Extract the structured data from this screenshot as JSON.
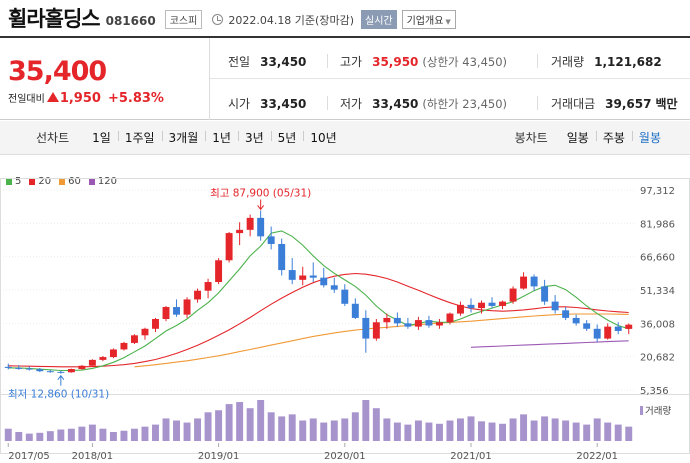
{
  "header": {
    "company": "휠라홀딩스",
    "code": "081660",
    "market": "코스피",
    "date_text": "2022.04.18 기준(장마감)",
    "realtime_label": "실시간",
    "overview_label": "기업개요"
  },
  "price": {
    "current": "35,400",
    "change_label": "전일대비",
    "change": "1,950",
    "change_pct": "+5.83%"
  },
  "stats": {
    "prev_label": "전일",
    "prev": "33,450",
    "high_label": "고가",
    "high": "35,950",
    "high_limit": "(상한가 43,450)",
    "volume_label": "거래량",
    "volume": "1,121,682",
    "open_label": "시가",
    "open": "33,450",
    "low_label": "저가",
    "low": "33,450",
    "low_limit": "(하한가 23,450)",
    "amount_label": "거래대금",
    "amount": "39,657",
    "amount_unit": "백만"
  },
  "tabs": {
    "line_title": "선차트",
    "line_periods": [
      "1일",
      "1주일",
      "3개월",
      "1년",
      "3년",
      "5년",
      "10년"
    ],
    "candle_title": "봉차트",
    "candle_periods": [
      "일봉",
      "주봉",
      "월봉"
    ],
    "active_candle": "월봉"
  },
  "colors": {
    "up": "#e4262b",
    "down": "#3b7ed8",
    "ma5": "#4cb24c",
    "ma20": "#e4262b",
    "ma60": "#f09a36",
    "ma120": "#9b59b6",
    "volume": "#a894cc"
  },
  "chart_data": {
    "type": "candlestick",
    "legend": [
      {
        "name": "5",
        "color": "#4cb24c"
      },
      {
        "name": "20",
        "color": "#e4262b"
      },
      {
        "name": "60",
        "color": "#f09a36"
      },
      {
        "name": "120",
        "color": "#9b59b6"
      }
    ],
    "y_ticks": [
      "97,312",
      "81,986",
      "66,660",
      "51,334",
      "36,008",
      "20,682",
      "5,356"
    ],
    "ylim": [
      5356,
      97312
    ],
    "x_ticks": [
      "2017/05",
      "2018/01",
      "2019/01",
      "2020/01",
      "2021/01",
      "2022/01"
    ],
    "annotations": {
      "high": "최고 87,900 (05/31)",
      "low": "최저 12,860 (10/31)"
    },
    "volume_label": "거래량",
    "candles": [
      {
        "m": "2017/05",
        "o": 16000,
        "h": 17500,
        "l": 14800,
        "c": 15500
      },
      {
        "m": "2017/06",
        "o": 15500,
        "h": 16800,
        "l": 14600,
        "c": 15200
      },
      {
        "m": "2017/07",
        "o": 15200,
        "h": 16200,
        "l": 14300,
        "c": 14900
      },
      {
        "m": "2017/08",
        "o": 14900,
        "h": 15500,
        "l": 13600,
        "c": 14000
      },
      {
        "m": "2017/09",
        "o": 14000,
        "h": 14600,
        "l": 13300,
        "c": 13700
      },
      {
        "m": "2017/10",
        "o": 13700,
        "h": 14200,
        "l": 12860,
        "c": 13500
      },
      {
        "m": "2017/11",
        "o": 13500,
        "h": 15200,
        "l": 13300,
        "c": 15000
      },
      {
        "m": "2017/12",
        "o": 15000,
        "h": 16800,
        "l": 14700,
        "c": 16500
      },
      {
        "m": "2018/01",
        "o": 16500,
        "h": 19500,
        "l": 16200,
        "c": 19200
      },
      {
        "m": "2018/02",
        "o": 19200,
        "h": 21000,
        "l": 18600,
        "c": 20500
      },
      {
        "m": "2018/03",
        "o": 20500,
        "h": 24500,
        "l": 20000,
        "c": 24000
      },
      {
        "m": "2018/04",
        "o": 24000,
        "h": 27500,
        "l": 23500,
        "c": 27000
      },
      {
        "m": "2018/05",
        "o": 27000,
        "h": 31000,
        "l": 26500,
        "c": 30500
      },
      {
        "m": "2018/06",
        "o": 30500,
        "h": 34000,
        "l": 28500,
        "c": 33500
      },
      {
        "m": "2018/07",
        "o": 33500,
        "h": 38500,
        "l": 32000,
        "c": 38000
      },
      {
        "m": "2018/08",
        "o": 38000,
        "h": 44000,
        "l": 37000,
        "c": 43500
      },
      {
        "m": "2018/09",
        "o": 43500,
        "h": 47000,
        "l": 39000,
        "c": 40000
      },
      {
        "m": "2018/10",
        "o": 40000,
        "h": 48000,
        "l": 38500,
        "c": 47000
      },
      {
        "m": "2018/11",
        "o": 47000,
        "h": 52000,
        "l": 45500,
        "c": 51000
      },
      {
        "m": "2018/12",
        "o": 51000,
        "h": 56500,
        "l": 47500,
        "c": 55000
      },
      {
        "m": "2019/01",
        "o": 55000,
        "h": 66000,
        "l": 54000,
        "c": 65000
      },
      {
        "m": "2019/02",
        "o": 65000,
        "h": 78000,
        "l": 64000,
        "c": 77500
      },
      {
        "m": "2019/03",
        "o": 77500,
        "h": 82500,
        "l": 72000,
        "c": 79000
      },
      {
        "m": "2019/04",
        "o": 79000,
        "h": 86000,
        "l": 76000,
        "c": 84500
      },
      {
        "m": "2019/05",
        "o": 84500,
        "h": 87900,
        "l": 74000,
        "c": 76000
      },
      {
        "m": "2019/06",
        "o": 76000,
        "h": 80500,
        "l": 70000,
        "c": 72500
      },
      {
        "m": "2019/07",
        "o": 72500,
        "h": 75000,
        "l": 58000,
        "c": 60500
      },
      {
        "m": "2019/08",
        "o": 60500,
        "h": 66000,
        "l": 54000,
        "c": 56000
      },
      {
        "m": "2019/09",
        "o": 56000,
        "h": 62000,
        "l": 53500,
        "c": 58000
      },
      {
        "m": "2019/10",
        "o": 58000,
        "h": 64000,
        "l": 55000,
        "c": 57000
      },
      {
        "m": "2019/11",
        "o": 57000,
        "h": 61500,
        "l": 52500,
        "c": 53500
      },
      {
        "m": "2019/12",
        "o": 53500,
        "h": 57000,
        "l": 50000,
        "c": 51500
      },
      {
        "m": "2020/01",
        "o": 51500,
        "h": 54000,
        "l": 44000,
        "c": 45000
      },
      {
        "m": "2020/02",
        "o": 45000,
        "h": 47500,
        "l": 38000,
        "c": 38500
      },
      {
        "m": "2020/03",
        "o": 38500,
        "h": 42000,
        "l": 22500,
        "c": 29000
      },
      {
        "m": "2020/04",
        "o": 29000,
        "h": 38000,
        "l": 28000,
        "c": 36500
      },
      {
        "m": "2020/05",
        "o": 36500,
        "h": 40500,
        "l": 33500,
        "c": 38500
      },
      {
        "m": "2020/06",
        "o": 38500,
        "h": 41000,
        "l": 34500,
        "c": 36000
      },
      {
        "m": "2020/07",
        "o": 36000,
        "h": 38500,
        "l": 33500,
        "c": 34500
      },
      {
        "m": "2020/08",
        "o": 34500,
        "h": 39000,
        "l": 33000,
        "c": 37500
      },
      {
        "m": "2020/09",
        "o": 37500,
        "h": 39500,
        "l": 34000,
        "c": 35000
      },
      {
        "m": "2020/10",
        "o": 35000,
        "h": 38000,
        "l": 33500,
        "c": 36500
      },
      {
        "m": "2020/11",
        "o": 36500,
        "h": 41000,
        "l": 35500,
        "c": 40500
      },
      {
        "m": "2020/12",
        "o": 40500,
        "h": 46000,
        "l": 39500,
        "c": 44500
      },
      {
        "m": "2021/01",
        "o": 44500,
        "h": 47500,
        "l": 41000,
        "c": 43000
      },
      {
        "m": "2021/02",
        "o": 43000,
        "h": 46500,
        "l": 40500,
        "c": 45500
      },
      {
        "m": "2021/03",
        "o": 45500,
        "h": 48000,
        "l": 43000,
        "c": 44000
      },
      {
        "m": "2021/04",
        "o": 44000,
        "h": 46500,
        "l": 42500,
        "c": 46000
      },
      {
        "m": "2021/05",
        "o": 46000,
        "h": 53000,
        "l": 45000,
        "c": 52000
      },
      {
        "m": "2021/06",
        "o": 52000,
        "h": 59500,
        "l": 51500,
        "c": 57500
      },
      {
        "m": "2021/07",
        "o": 57500,
        "h": 58500,
        "l": 51000,
        "c": 53000
      },
      {
        "m": "2021/08",
        "o": 53000,
        "h": 56000,
        "l": 44500,
        "c": 46000
      },
      {
        "m": "2021/09",
        "o": 46000,
        "h": 49000,
        "l": 40500,
        "c": 42000
      },
      {
        "m": "2021/10",
        "o": 42000,
        "h": 43500,
        "l": 37500,
        "c": 38500
      },
      {
        "m": "2021/11",
        "o": 38500,
        "h": 40000,
        "l": 35000,
        "c": 36000
      },
      {
        "m": "2021/12",
        "o": 36000,
        "h": 37500,
        "l": 32500,
        "c": 33500
      },
      {
        "m": "2022/01",
        "o": 33500,
        "h": 35500,
        "l": 27500,
        "c": 29000
      },
      {
        "m": "2022/02",
        "o": 29000,
        "h": 36000,
        "l": 28500,
        "c": 34500
      },
      {
        "m": "2022/03",
        "o": 34500,
        "h": 36500,
        "l": 31000,
        "c": 32500
      },
      {
        "m": "2022/04",
        "o": 33450,
        "h": 35950,
        "l": 31000,
        "c": 35400
      }
    ],
    "volume": [
      30,
      22,
      18,
      20,
      24,
      28,
      30,
      35,
      40,
      30,
      22,
      25,
      30,
      35,
      40,
      55,
      50,
      45,
      55,
      70,
      75,
      90,
      95,
      80,
      100,
      70,
      60,
      65,
      50,
      55,
      45,
      50,
      55,
      70,
      100,
      80,
      55,
      45,
      40,
      50,
      45,
      42,
      50,
      55,
      60,
      48,
      45,
      42,
      55,
      65,
      50,
      60,
      55,
      50,
      45,
      40,
      55,
      45,
      40,
      35
    ],
    "ma5": [
      15500,
      15500,
      15300,
      14900,
      14650,
      14300,
      14300,
      14500,
      15300,
      16500,
      18100,
      20200,
      22900,
      25600,
      29000,
      32500,
      35000,
      38000,
      42000,
      45500,
      50000,
      55500,
      61000,
      67000,
      71500,
      77500,
      78500,
      76000,
      72000,
      67000,
      62500,
      59000,
      56000,
      53000,
      49000,
      44000,
      40000,
      37500,
      35000,
      36000,
      37000,
      36500,
      36500,
      38000,
      40000,
      41500,
      43000,
      44500,
      46000,
      48500,
      51000,
      53000,
      53500,
      51500,
      48000,
      44000,
      40500,
      37500,
      35000,
      33500
    ],
    "ma20": [
      16500,
      16400,
      16300,
      16200,
      16100,
      16000,
      16000,
      16000,
      16100,
      16300,
      16600,
      17000,
      17600,
      18400,
      19400,
      20700,
      22200,
      24000,
      25900,
      28100,
      30500,
      33000,
      35800,
      38700,
      41800,
      44800,
      47600,
      50200,
      52600,
      54700,
      56400,
      57700,
      58500,
      58900,
      58600,
      57800,
      56600,
      55000,
      53100,
      51200,
      49200,
      47300,
      45500,
      44000,
      42800,
      42200,
      41800,
      41600,
      41800,
      42200,
      42700,
      43300,
      43600,
      43600,
      43300,
      42800,
      42200,
      41700,
      41300,
      41000
    ],
    "ma60": [
      null,
      null,
      null,
      null,
      null,
      null,
      null,
      null,
      null,
      null,
      null,
      null,
      16000,
      16500,
      17000,
      17600,
      18200,
      18800,
      19500,
      20300,
      21100,
      22000,
      23000,
      24000,
      25000,
      26000,
      27000,
      28000,
      29000,
      30000,
      30800,
      31600,
      32300,
      32900,
      33400,
      33800,
      34200,
      34600,
      35000,
      35400,
      35800,
      36100,
      36400,
      36700,
      37000,
      37400,
      37800,
      38200,
      38600,
      39000,
      39400,
      39700,
      40000,
      40200,
      40300,
      40300,
      40300,
      40300,
      40200,
      40100
    ],
    "ma120": [
      null,
      null,
      null,
      null,
      null,
      null,
      null,
      null,
      null,
      null,
      null,
      null,
      null,
      null,
      null,
      null,
      null,
      null,
      null,
      null,
      null,
      null,
      null,
      null,
      null,
      null,
      null,
      null,
      null,
      null,
      null,
      null,
      null,
      null,
      null,
      null,
      null,
      null,
      null,
      null,
      null,
      null,
      null,
      null,
      25000,
      25200,
      25400,
      25600,
      25800,
      26000,
      26200,
      26400,
      26600,
      26800,
      27000,
      27200,
      27400,
      27600,
      27800,
      28000
    ]
  }
}
